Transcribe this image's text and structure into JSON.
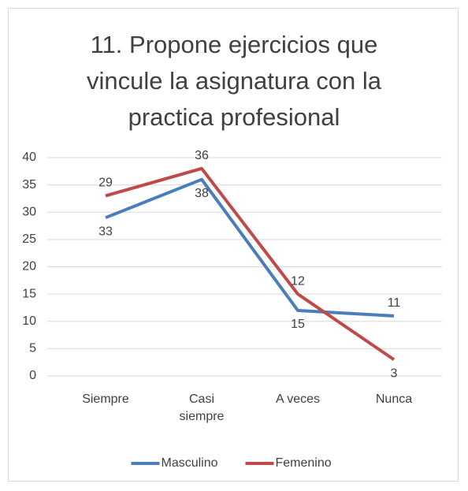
{
  "chart_data": {
    "type": "line",
    "title": "11. Propone ejercicios que vincule la asignatura con la practica profesional",
    "categories": [
      "Siempre",
      "Casi siempre",
      "A veces",
      "Nunca"
    ],
    "series": [
      {
        "name": "Masculino",
        "color": "#4a7ebb",
        "values": [
          29,
          36,
          12,
          11
        ]
      },
      {
        "name": "Femenino",
        "color": "#be4b48",
        "values": [
          33,
          38,
          15,
          3
        ]
      }
    ],
    "ylim": [
      0,
      40
    ],
    "yticks": [
      0,
      5,
      10,
      15,
      20,
      25,
      30,
      35,
      40
    ],
    "grid": true,
    "legend": "bottom"
  }
}
